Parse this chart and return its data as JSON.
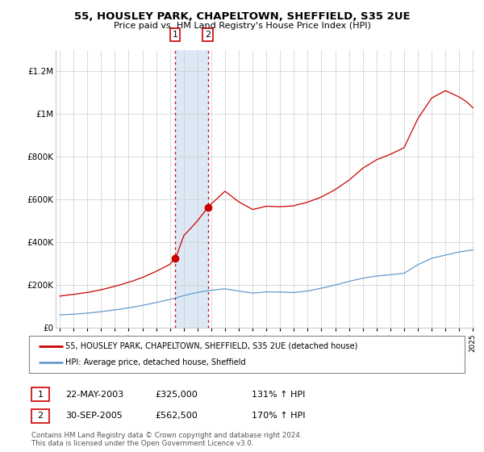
{
  "title": "55, HOUSLEY PARK, CHAPELTOWN, SHEFFIELD, S35 2UE",
  "subtitle": "Price paid vs. HM Land Registry's House Price Index (HPI)",
  "x_start_year": 1995,
  "x_end_year": 2025,
  "y_min": 0,
  "y_max": 1300000,
  "y_ticks": [
    0,
    200000,
    400000,
    600000,
    800000,
    1000000,
    1200000
  ],
  "y_tick_labels": [
    "£0",
    "£200K",
    "£400K",
    "£600K",
    "£800K",
    "£1M",
    "£1.2M"
  ],
  "sale1_year": 2003.38,
  "sale1_price": 325000,
  "sale1_label": "1",
  "sale1_date": "22-MAY-2003",
  "sale2_year": 2005.75,
  "sale2_price": 562500,
  "sale2_label": "2",
  "sale2_date": "30-SEP-2005",
  "hpi_color": "#6699cc",
  "sale_color": "#cc0000",
  "highlight_color": "#dce9f5",
  "grid_color": "#cccccc",
  "background_color": "#ffffff",
  "legend_label1": "55, HOUSLEY PARK, CHAPELTOWN, SHEFFIELD, S35 2UE (detached house)",
  "legend_label2": "HPI: Average price, detached house, Sheffield",
  "table_row1": [
    "1",
    "22-MAY-2003",
    "£325,000",
    "131% ↑ HPI"
  ],
  "table_row2": [
    "2",
    "30-SEP-2005",
    "£562,500",
    "170% ↑ HPI"
  ],
  "copyright_text": "Contains HM Land Registry data © Crown copyright and database right 2024.\nThis data is licensed under the Open Government Licence v3.0."
}
